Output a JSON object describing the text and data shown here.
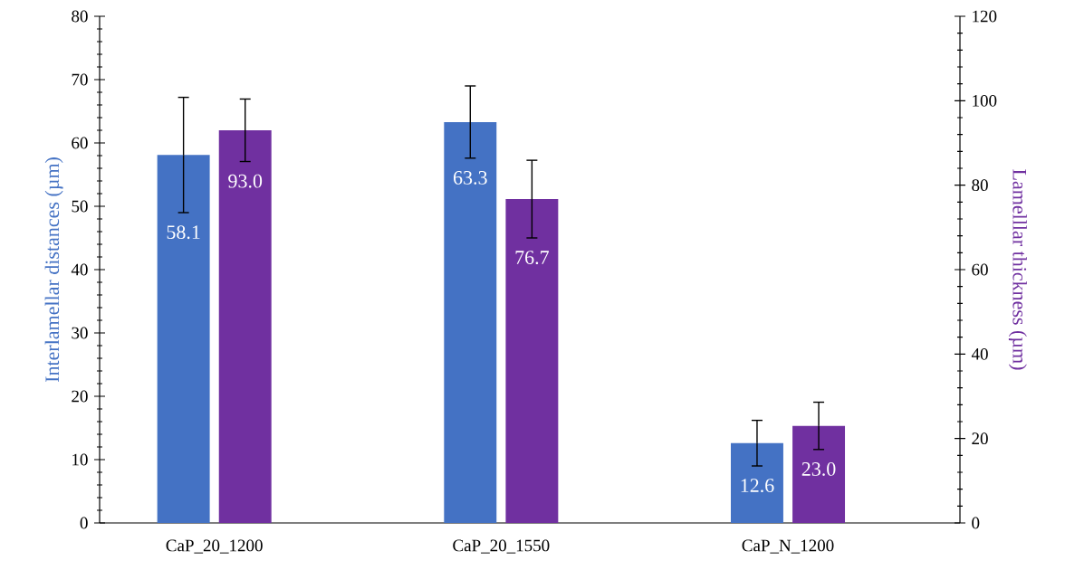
{
  "chart_data": {
    "type": "bar",
    "categories": [
      "CaP_20_1200",
      "CaP_20_1550",
      "CaP_N_1200"
    ],
    "ylabel": "Interlamellar distances (µm)",
    "y2label": "Lamelllar thickness (µm)",
    "ylim": [
      0,
      80
    ],
    "yticks": [
      0,
      10,
      20,
      30,
      40,
      50,
      60,
      70,
      80
    ],
    "y2lim": [
      0,
      120
    ],
    "y2ticks": [
      0,
      20,
      40,
      60,
      80,
      100,
      120
    ],
    "grid": false,
    "series": [
      {
        "color": "#4472c4",
        "values": [
          58.1,
          63.3,
          12.6
        ],
        "errors": [
          9.1,
          5.7,
          3.6
        ],
        "value_labels": [
          "58.1",
          "63.3",
          "12.6"
        ]
      },
      {
        "color": "#7030a0",
        "axis": "y2",
        "values": [
          93.0,
          76.7,
          23.0
        ],
        "errors": [
          7.4,
          9.2,
          5.6
        ],
        "value_labels": [
          "93.0",
          "76.7",
          "23.0"
        ]
      }
    ]
  }
}
